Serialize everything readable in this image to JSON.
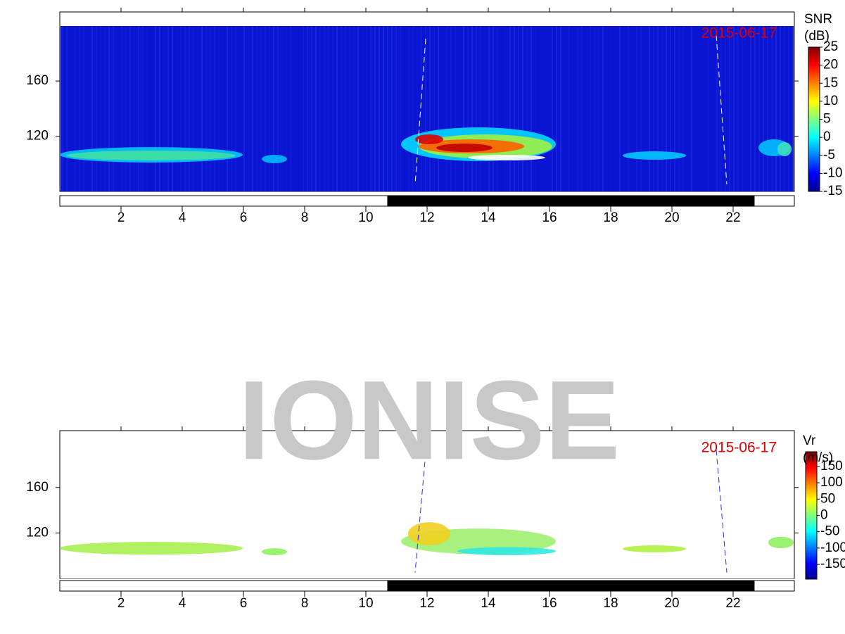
{
  "watermark": "IONISE",
  "chart_data": [
    {
      "type": "heatmap",
      "title": "SNR",
      "unit": "(dB)",
      "annotation": "2015-06-17",
      "xlim": [
        0,
        24
      ],
      "xticks": [
        2,
        4,
        6,
        8,
        10,
        12,
        14,
        16,
        18,
        20,
        22
      ],
      "ylim": [
        80,
        210
      ],
      "yticks": [
        120,
        160
      ],
      "clim": [
        -15,
        25
      ],
      "cticks": [
        25,
        20,
        15,
        10,
        5,
        0,
        -5,
        -10,
        -15
      ],
      "dark_band": [
        10.7,
        22.7
      ],
      "background": "#0a14d2"
    },
    {
      "type": "heatmap",
      "title": "Vr",
      "unit": "(m/s)",
      "annotation": "2015-06-17",
      "xlim": [
        0,
        24
      ],
      "xticks": [
        2,
        4,
        6,
        8,
        10,
        12,
        14,
        16,
        18,
        20,
        22
      ],
      "ylim": [
        80,
        210
      ],
      "yticks": [
        120,
        160
      ],
      "clim": [
        -195,
        195
      ],
      "cticks": [
        150,
        100,
        50,
        0,
        -50,
        -100,
        -150
      ],
      "dark_band": [
        10.7,
        22.7
      ],
      "background": "#ffffff"
    }
  ]
}
